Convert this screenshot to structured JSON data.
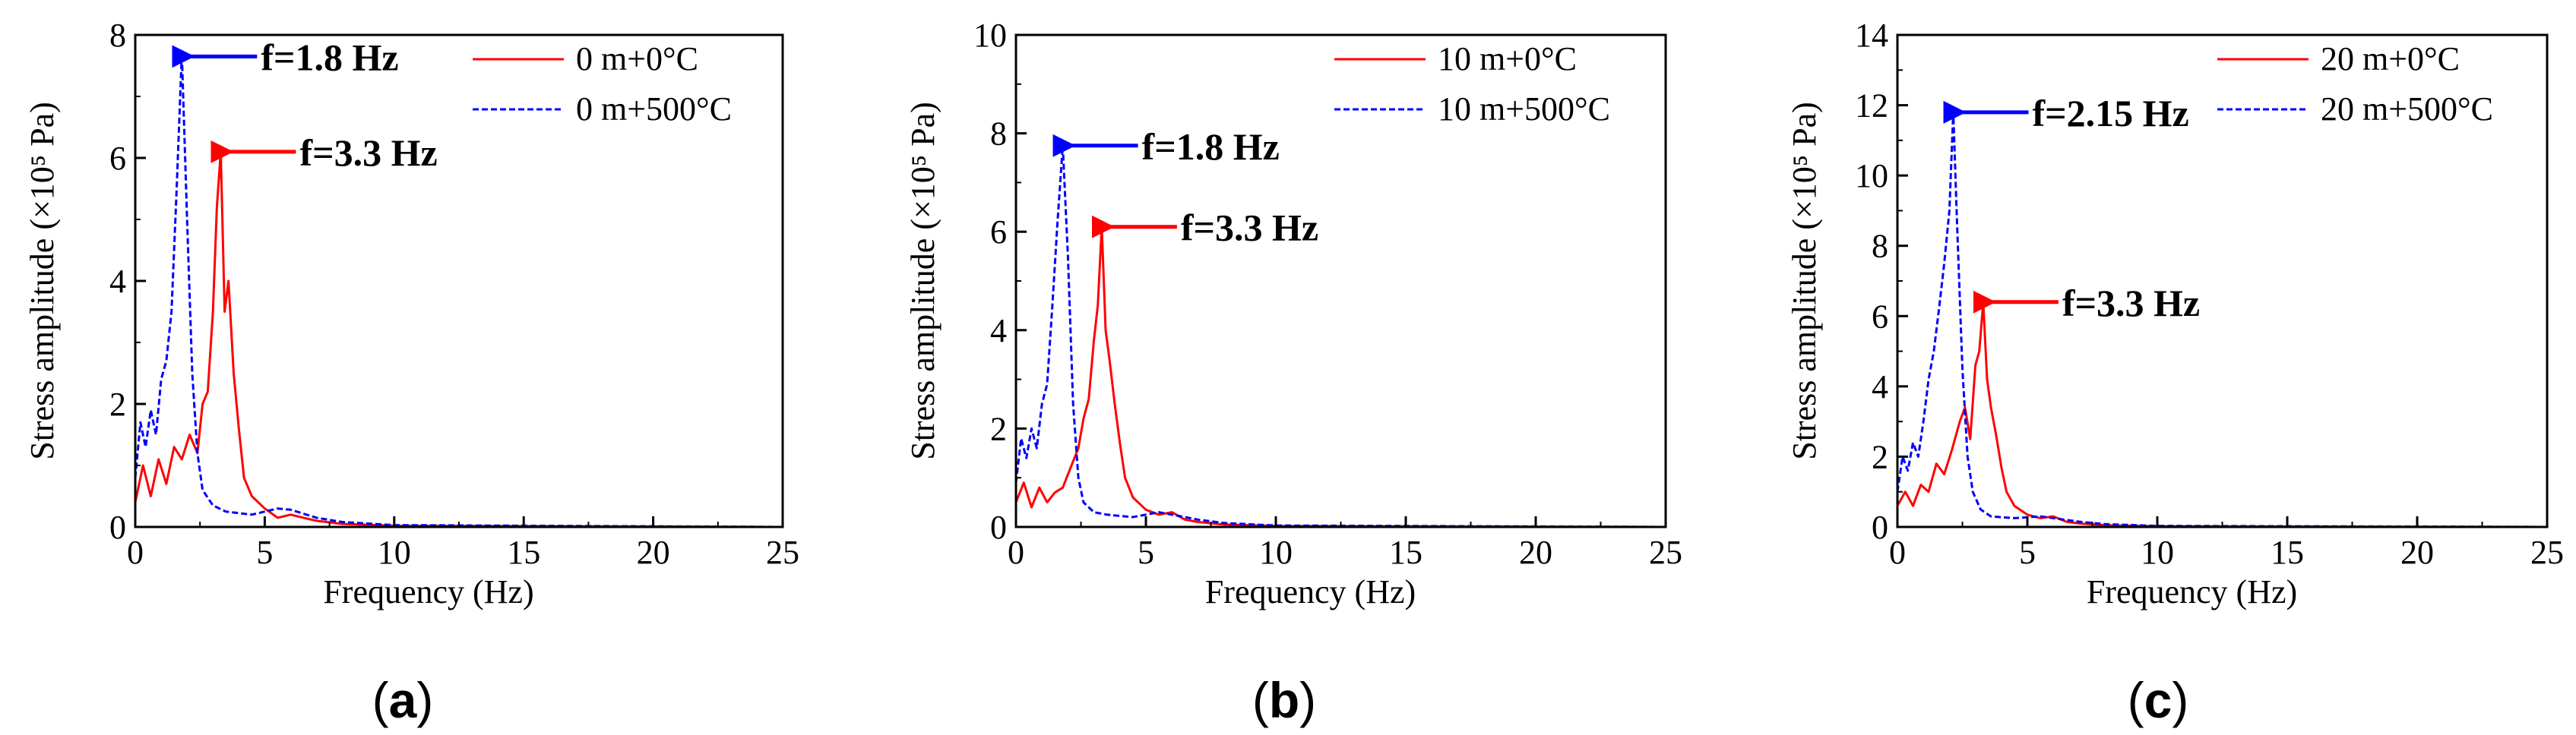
{
  "chart_data": [
    {
      "panel": "a",
      "type": "line",
      "xlabel": "Frequency (Hz)",
      "ylabel": "Stress amplitude (×10⁵ Pa)",
      "xlim": [
        0,
        25
      ],
      "ylim": [
        0,
        8
      ],
      "xticks": [
        0,
        5,
        10,
        15,
        20,
        25
      ],
      "yticks": [
        0,
        2,
        4,
        6,
        8
      ],
      "series": [
        {
          "name": "0 m+0°C",
          "color": "#ff0000",
          "style": "solid",
          "points": [
            [
              0,
              0.4
            ],
            [
              0.3,
              1.0
            ],
            [
              0.6,
              0.5
            ],
            [
              0.9,
              1.1
            ],
            [
              1.2,
              0.7
            ],
            [
              1.5,
              1.3
            ],
            [
              1.8,
              1.1
            ],
            [
              2.1,
              1.5
            ],
            [
              2.4,
              1.2
            ],
            [
              2.6,
              2.0
            ],
            [
              2.8,
              2.2
            ],
            [
              3.0,
              3.5
            ],
            [
              3.15,
              5.2
            ],
            [
              3.3,
              6.1
            ],
            [
              3.45,
              3.5
            ],
            [
              3.6,
              4.0
            ],
            [
              3.8,
              2.5
            ],
            [
              4.0,
              1.6
            ],
            [
              4.2,
              0.8
            ],
            [
              4.5,
              0.5
            ],
            [
              5.0,
              0.3
            ],
            [
              5.5,
              0.15
            ],
            [
              6.0,
              0.2
            ],
            [
              6.5,
              0.15
            ],
            [
              7.0,
              0.1
            ],
            [
              8.0,
              0.05
            ],
            [
              10.0,
              0.02
            ],
            [
              25.0,
              0.0
            ]
          ]
        },
        {
          "name": "0 m+500°C",
          "color": "#0000ff",
          "style": "dashed",
          "points": [
            [
              0,
              0.8
            ],
            [
              0.2,
              1.7
            ],
            [
              0.4,
              1.3
            ],
            [
              0.6,
              1.9
            ],
            [
              0.8,
              1.5
            ],
            [
              1.0,
              2.4
            ],
            [
              1.2,
              2.7
            ],
            [
              1.4,
              3.5
            ],
            [
              1.6,
              5.5
            ],
            [
              1.8,
              7.7
            ],
            [
              2.0,
              5.0
            ],
            [
              2.2,
              2.5
            ],
            [
              2.4,
              1.2
            ],
            [
              2.6,
              0.6
            ],
            [
              3.0,
              0.35
            ],
            [
              3.5,
              0.25
            ],
            [
              4.5,
              0.2
            ],
            [
              5.5,
              0.3
            ],
            [
              6.0,
              0.28
            ],
            [
              7.0,
              0.15
            ],
            [
              8.0,
              0.08
            ],
            [
              10.0,
              0.03
            ],
            [
              25.0,
              0.0
            ]
          ]
        }
      ],
      "legend": [
        "0 m+0°C",
        "0 m+500°C"
      ],
      "annotations": [
        {
          "text": "f=1.8 Hz",
          "x": 1.8,
          "y": 7.65,
          "color": "#0000ff"
        },
        {
          "text": "f=3.3 Hz",
          "x": 3.3,
          "y": 6.1,
          "color": "#ff0000"
        }
      ],
      "label": "a"
    },
    {
      "panel": "b",
      "type": "line",
      "xlabel": "Frequency (Hz)",
      "ylabel": "Stress amplitude (×10⁵ Pa)",
      "xlim": [
        0,
        25
      ],
      "ylim": [
        0,
        10
      ],
      "xticks": [
        0,
        5,
        10,
        15,
        20,
        25
      ],
      "yticks": [
        0,
        2,
        4,
        6,
        8,
        10
      ],
      "series": [
        {
          "name": "10 m+0°C",
          "color": "#ff0000",
          "style": "solid",
          "points": [
            [
              0,
              0.5
            ],
            [
              0.3,
              0.9
            ],
            [
              0.6,
              0.4
            ],
            [
              0.9,
              0.8
            ],
            [
              1.2,
              0.5
            ],
            [
              1.5,
              0.7
            ],
            [
              1.8,
              0.8
            ],
            [
              2.1,
              1.2
            ],
            [
              2.4,
              1.6
            ],
            [
              2.6,
              2.2
            ],
            [
              2.8,
              2.6
            ],
            [
              3.0,
              3.8
            ],
            [
              3.15,
              4.5
            ],
            [
              3.3,
              6.1
            ],
            [
              3.45,
              4.0
            ],
            [
              3.6,
              3.4
            ],
            [
              3.8,
              2.5
            ],
            [
              4.0,
              1.7
            ],
            [
              4.2,
              1.0
            ],
            [
              4.5,
              0.6
            ],
            [
              5.0,
              0.35
            ],
            [
              5.5,
              0.25
            ],
            [
              6.0,
              0.3
            ],
            [
              6.5,
              0.15
            ],
            [
              7.0,
              0.1
            ],
            [
              8.0,
              0.05
            ],
            [
              10.0,
              0.02
            ],
            [
              25.0,
              0.0
            ]
          ]
        },
        {
          "name": "10 m+500°C",
          "color": "#0000ff",
          "style": "dashed",
          "points": [
            [
              0,
              0.9
            ],
            [
              0.2,
              1.8
            ],
            [
              0.4,
              1.4
            ],
            [
              0.6,
              2.0
            ],
            [
              0.8,
              1.6
            ],
            [
              1.0,
              2.5
            ],
            [
              1.2,
              2.9
            ],
            [
              1.4,
              4.5
            ],
            [
              1.6,
              6.2
            ],
            [
              1.8,
              7.75
            ],
            [
              2.0,
              5.5
            ],
            [
              2.2,
              2.5
            ],
            [
              2.4,
              1.0
            ],
            [
              2.6,
              0.5
            ],
            [
              3.0,
              0.3
            ],
            [
              3.5,
              0.25
            ],
            [
              4.5,
              0.2
            ],
            [
              5.5,
              0.3
            ],
            [
              6.0,
              0.25
            ],
            [
              7.0,
              0.15
            ],
            [
              8.0,
              0.08
            ],
            [
              10.0,
              0.03
            ],
            [
              25.0,
              0.0
            ]
          ]
        }
      ],
      "legend": [
        "10 m+0°C",
        "10 m+500°C"
      ],
      "annotations": [
        {
          "text": "f=1.8 Hz",
          "x": 1.8,
          "y": 7.75,
          "color": "#0000ff"
        },
        {
          "text": "f=3.3 Hz",
          "x": 3.3,
          "y": 6.1,
          "color": "#ff0000"
        }
      ],
      "label": "b"
    },
    {
      "panel": "c",
      "type": "line",
      "xlabel": "Frequency (Hz)",
      "ylabel": "Stress amplitude (×10⁵ Pa)",
      "xlim": [
        0,
        25
      ],
      "ylim": [
        0,
        14
      ],
      "xticks": [
        0,
        5,
        10,
        15,
        20,
        25
      ],
      "yticks": [
        0,
        2,
        4,
        6,
        8,
        10,
        12,
        14
      ],
      "series": [
        {
          "name": "20 m+0°C",
          "color": "#ff0000",
          "style": "solid",
          "points": [
            [
              0,
              0.6
            ],
            [
              0.3,
              1.0
            ],
            [
              0.6,
              0.6
            ],
            [
              0.9,
              1.2
            ],
            [
              1.2,
              1.0
            ],
            [
              1.5,
              1.8
            ],
            [
              1.8,
              1.5
            ],
            [
              2.1,
              2.2
            ],
            [
              2.4,
              3.0
            ],
            [
              2.6,
              3.4
            ],
            [
              2.8,
              2.5
            ],
            [
              3.0,
              4.6
            ],
            [
              3.15,
              5.0
            ],
            [
              3.3,
              6.4
            ],
            [
              3.45,
              4.2
            ],
            [
              3.6,
              3.4
            ],
            [
              3.8,
              2.6
            ],
            [
              4.0,
              1.7
            ],
            [
              4.2,
              1.0
            ],
            [
              4.5,
              0.6
            ],
            [
              5.0,
              0.35
            ],
            [
              5.5,
              0.25
            ],
            [
              6.0,
              0.3
            ],
            [
              6.5,
              0.15
            ],
            [
              7.0,
              0.1
            ],
            [
              8.0,
              0.05
            ],
            [
              10.0,
              0.02
            ],
            [
              25.0,
              0.0
            ]
          ]
        },
        {
          "name": "20 m+500°C",
          "color": "#0000ff",
          "style": "dashed",
          "points": [
            [
              0,
              1.0
            ],
            [
              0.2,
              2.0
            ],
            [
              0.4,
              1.6
            ],
            [
              0.6,
              2.4
            ],
            [
              0.8,
              2.0
            ],
            [
              1.0,
              3.0
            ],
            [
              1.2,
              4.2
            ],
            [
              1.4,
              5.0
            ],
            [
              1.6,
              6.2
            ],
            [
              1.8,
              7.5
            ],
            [
              2.0,
              9.0
            ],
            [
              2.15,
              11.8
            ],
            [
              2.3,
              8.5
            ],
            [
              2.5,
              4.5
            ],
            [
              2.7,
              2.0
            ],
            [
              2.9,
              1.0
            ],
            [
              3.2,
              0.5
            ],
            [
              3.6,
              0.3
            ],
            [
              4.5,
              0.25
            ],
            [
              5.5,
              0.3
            ],
            [
              6.0,
              0.25
            ],
            [
              7.0,
              0.15
            ],
            [
              8.0,
              0.08
            ],
            [
              10.0,
              0.03
            ],
            [
              25.0,
              0.0
            ]
          ]
        }
      ],
      "legend": [
        "20 m+0°C",
        "20 m+500°C"
      ],
      "annotations": [
        {
          "text": "f=2.15 Hz",
          "x": 2.15,
          "y": 11.8,
          "color": "#0000ff"
        },
        {
          "text": "f=3.3 Hz",
          "x": 3.3,
          "y": 6.4,
          "color": "#ff0000"
        }
      ],
      "label": "c"
    }
  ]
}
